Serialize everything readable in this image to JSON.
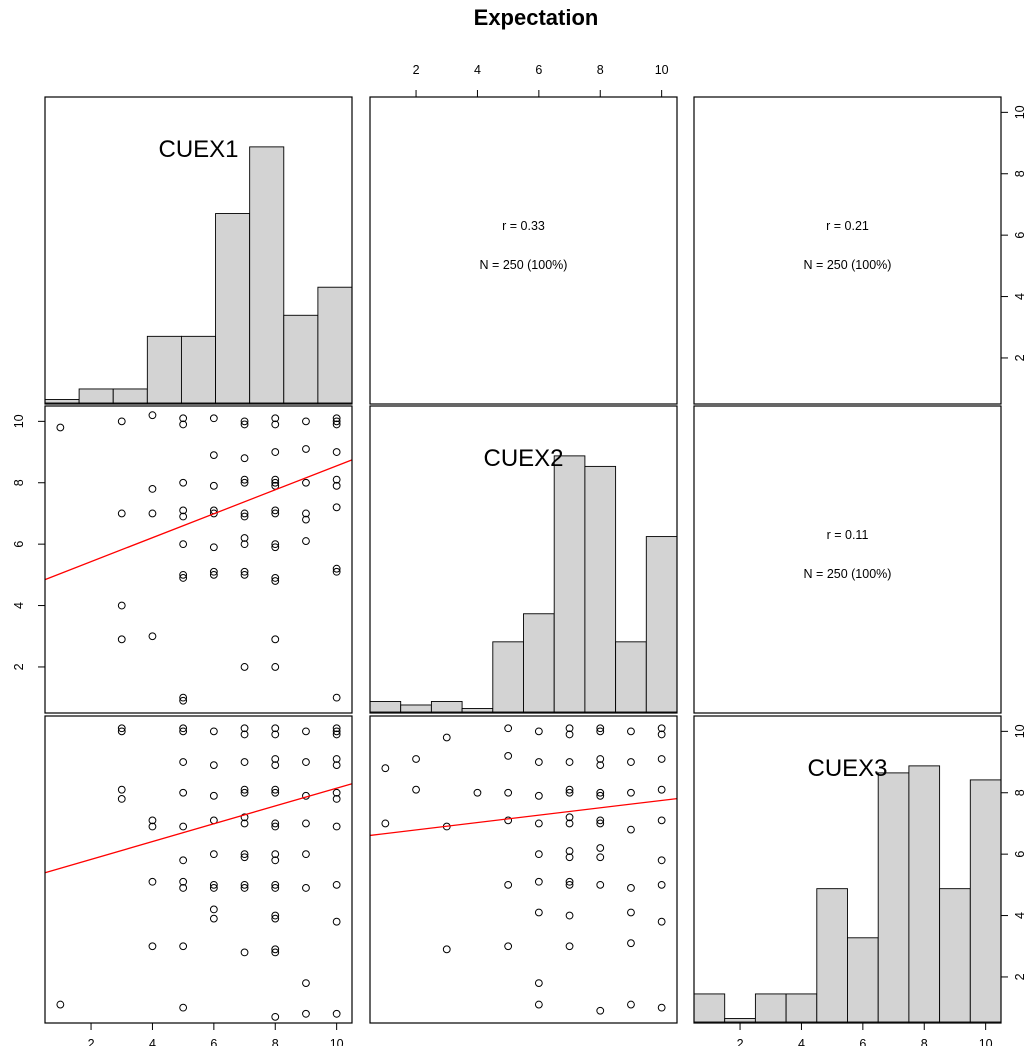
{
  "chart_data": {
    "type": "scatter-matrix",
    "title": "Expectation",
    "variables": [
      "CUEX1",
      "CUEX2",
      "CUEX3"
    ],
    "axis_range": [
      0.5,
      10.5
    ],
    "axis_ticks": [
      2,
      4,
      6,
      8,
      10
    ],
    "tick_labels": [
      "2",
      "4",
      "6",
      "8",
      "10"
    ],
    "histograms": {
      "CUEX1": [
        0.1,
        0.4,
        0.4,
        1.9,
        1.9,
        5.4,
        7.3,
        2.5,
        3.3
      ],
      "CUEX2": [
        0.3,
        0.2,
        0.3,
        0.1,
        2.0,
        2.8,
        7.3,
        7.0,
        2.0,
        5.0
      ]
    },
    "histogram_CUEX3": [
      0.8,
      0.1,
      0.8,
      0.8,
      3.8,
      2.4,
      7.1,
      7.3,
      3.8,
      6.9
    ],
    "correlations": [
      {
        "pair": [
          "CUEX1",
          "CUEX2"
        ],
        "r_text": "r = 0.33",
        "n_text": "N = 250 (100%)"
      },
      {
        "pair": [
          "CUEX1",
          "CUEX3"
        ],
        "r_text": "r = 0.21",
        "n_text": "N = 250 (100%)"
      },
      {
        "pair": [
          "CUEX2",
          "CUEX3"
        ],
        "r_text": "r = 0.11",
        "n_text": "N = 250 (100%)"
      }
    ],
    "regressions": [
      {
        "x": "CUEX1",
        "y": "CUEX2",
        "intercept": 4.65,
        "slope": 0.39
      },
      {
        "x": "CUEX1",
        "y": "CUEX3",
        "intercept": 5.25,
        "slope": 0.29
      },
      {
        "x": "CUEX2",
        "y": "CUEX3",
        "intercept": 6.55,
        "slope": 0.12
      }
    ],
    "scatter_CUEX1_CUEX2": [
      [
        1,
        9.8
      ],
      [
        3,
        10
      ],
      [
        4,
        10.2
      ],
      [
        5,
        9.9
      ],
      [
        5,
        10.1
      ],
      [
        6,
        10.1
      ],
      [
        7,
        10
      ],
      [
        7,
        9.9
      ],
      [
        8,
        10.1
      ],
      [
        8,
        9.9
      ],
      [
        9,
        10
      ],
      [
        10,
        10
      ],
      [
        10,
        9.9
      ],
      [
        10,
        10.1
      ],
      [
        6,
        8.9
      ],
      [
        8,
        9
      ],
      [
        9,
        9.1
      ],
      [
        10,
        9
      ],
      [
        7,
        8.8
      ],
      [
        4,
        7.8
      ],
      [
        5,
        8
      ],
      [
        6,
        7.9
      ],
      [
        7,
        8
      ],
      [
        7,
        8.1
      ],
      [
        8,
        8
      ],
      [
        8,
        8.1
      ],
      [
        8,
        7.9
      ],
      [
        9,
        8
      ],
      [
        10,
        8.1
      ],
      [
        10,
        7.9
      ],
      [
        3,
        7
      ],
      [
        4,
        7
      ],
      [
        5,
        7.1
      ],
      [
        5,
        6.9
      ],
      [
        6,
        7.1
      ],
      [
        6,
        7
      ],
      [
        7,
        7
      ],
      [
        7,
        6.9
      ],
      [
        8,
        7.1
      ],
      [
        8,
        7
      ],
      [
        9,
        7
      ],
      [
        9,
        6.8
      ],
      [
        10,
        7.2
      ],
      [
        5,
        6
      ],
      [
        6,
        5.9
      ],
      [
        7,
        6
      ],
      [
        7,
        6.2
      ],
      [
        8,
        6
      ],
      [
        8,
        5.9
      ],
      [
        9,
        6.1
      ],
      [
        5,
        5
      ],
      [
        5,
        4.9
      ],
      [
        6,
        5
      ],
      [
        6,
        5.1
      ],
      [
        7,
        5
      ],
      [
        7,
        5.1
      ],
      [
        8,
        4.9
      ],
      [
        8,
        4.8
      ],
      [
        10,
        5.1
      ],
      [
        10,
        5.2
      ],
      [
        3,
        4
      ],
      [
        3,
        2.9
      ],
      [
        4,
        3
      ],
      [
        8,
        2.9
      ],
      [
        7,
        2
      ],
      [
        8,
        2
      ],
      [
        5,
        1
      ],
      [
        5,
        0.9
      ],
      [
        10,
        1
      ]
    ],
    "scatter_CUEX1_CUEX3": [
      [
        3,
        10.1
      ],
      [
        3,
        10
      ],
      [
        5,
        10.1
      ],
      [
        5,
        10
      ],
      [
        6,
        10
      ],
      [
        7,
        10.1
      ],
      [
        7,
        9.9
      ],
      [
        8,
        10.1
      ],
      [
        8,
        9.9
      ],
      [
        9,
        10
      ],
      [
        10,
        10
      ],
      [
        10,
        10.1
      ],
      [
        10,
        9.9
      ],
      [
        5,
        9
      ],
      [
        6,
        8.9
      ],
      [
        7,
        9
      ],
      [
        8,
        9.1
      ],
      [
        8,
        8.9
      ],
      [
        9,
        9
      ],
      [
        10,
        9.1
      ],
      [
        10,
        8.9
      ],
      [
        3,
        8.1
      ],
      [
        3,
        7.8
      ],
      [
        5,
        8
      ],
      [
        6,
        7.9
      ],
      [
        7,
        8
      ],
      [
        7,
        8.1
      ],
      [
        8,
        8
      ],
      [
        8,
        8.1
      ],
      [
        9,
        7.9
      ],
      [
        10,
        8
      ],
      [
        10,
        7.8
      ],
      [
        4,
        6.9
      ],
      [
        4,
        7.1
      ],
      [
        5,
        6.9
      ],
      [
        6,
        7.1
      ],
      [
        7,
        7
      ],
      [
        7,
        7.2
      ],
      [
        8,
        7
      ],
      [
        8,
        6.9
      ],
      [
        9,
        7
      ],
      [
        10,
        6.9
      ],
      [
        5,
        5.8
      ],
      [
        6,
        6
      ],
      [
        7,
        5.9
      ],
      [
        7,
        6
      ],
      [
        8,
        6
      ],
      [
        8,
        5.8
      ],
      [
        9,
        6
      ],
      [
        4,
        5.1
      ],
      [
        5,
        5.1
      ],
      [
        5,
        4.9
      ],
      [
        6,
        5
      ],
      [
        6,
        4.9
      ],
      [
        7,
        4.9
      ],
      [
        7,
        5
      ],
      [
        8,
        5
      ],
      [
        8,
        4.9
      ],
      [
        9,
        4.9
      ],
      [
        10,
        5
      ],
      [
        6,
        4.2
      ],
      [
        6,
        3.9
      ],
      [
        8,
        3.9
      ],
      [
        8,
        4
      ],
      [
        10,
        3.8
      ],
      [
        4,
        3
      ],
      [
        5,
        3
      ],
      [
        7,
        2.8
      ],
      [
        8,
        2.8
      ],
      [
        8,
        2.9
      ],
      [
        9,
        1.8
      ],
      [
        1,
        1.1
      ],
      [
        5,
        1
      ],
      [
        8,
        0.7
      ],
      [
        9,
        0.8
      ],
      [
        10,
        0.8
      ]
    ],
    "scatter_CUEX2_CUEX3": [
      [
        5,
        10.1
      ],
      [
        6,
        10
      ],
      [
        7,
        10.1
      ],
      [
        7,
        9.9
      ],
      [
        8,
        10
      ],
      [
        8,
        10.1
      ],
      [
        9,
        10
      ],
      [
        10,
        10.1
      ],
      [
        10,
        9.9
      ],
      [
        1,
        8.8
      ],
      [
        2,
        9.1
      ],
      [
        3,
        9.8
      ],
      [
        5,
        9.2
      ],
      [
        6,
        9
      ],
      [
        7,
        9
      ],
      [
        8,
        9.1
      ],
      [
        8,
        8.9
      ],
      [
        9,
        9
      ],
      [
        10,
        9.1
      ],
      [
        2,
        8.1
      ],
      [
        4,
        8
      ],
      [
        5,
        8
      ],
      [
        6,
        7.9
      ],
      [
        7,
        8
      ],
      [
        7,
        8.1
      ],
      [
        8,
        8
      ],
      [
        8,
        7.9
      ],
      [
        9,
        8
      ],
      [
        10,
        8.1
      ],
      [
        1,
        7
      ],
      [
        3,
        6.9
      ],
      [
        5,
        7.1
      ],
      [
        6,
        7
      ],
      [
        7,
        7
      ],
      [
        7,
        7.2
      ],
      [
        8,
        7
      ],
      [
        8,
        7.1
      ],
      [
        9,
        6.8
      ],
      [
        10,
        7.1
      ],
      [
        6,
        6
      ],
      [
        7,
        6.1
      ],
      [
        7,
        5.9
      ],
      [
        8,
        6.2
      ],
      [
        8,
        5.9
      ],
      [
        10,
        5.8
      ],
      [
        5,
        5
      ],
      [
        6,
        5.1
      ],
      [
        7,
        5
      ],
      [
        7,
        5.1
      ],
      [
        8,
        5
      ],
      [
        9,
        4.9
      ],
      [
        10,
        5
      ],
      [
        6,
        4.1
      ],
      [
        7,
        4
      ],
      [
        9,
        4.1
      ],
      [
        10,
        3.8
      ],
      [
        3,
        2.9
      ],
      [
        5,
        3
      ],
      [
        7,
        3
      ],
      [
        9,
        3.1
      ],
      [
        6,
        1.8
      ],
      [
        6,
        1.1
      ],
      [
        8,
        0.9
      ],
      [
        9,
        1.1
      ],
      [
        10,
        1
      ]
    ]
  }
}
